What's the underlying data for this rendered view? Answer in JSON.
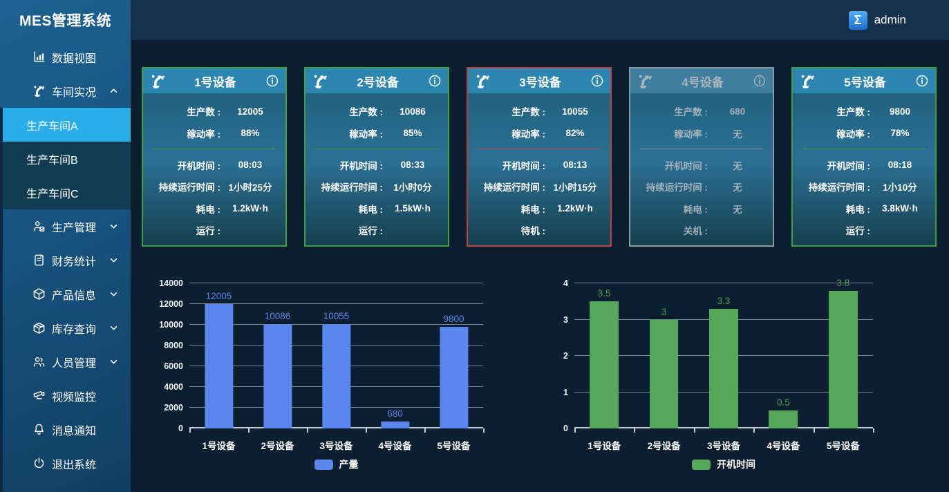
{
  "app": {
    "title": "MES管理系统",
    "user": "admin",
    "user_icon": "sigma-avatar",
    "colors": {
      "sidebar": "#17537e",
      "sidebar_selected": "#29aee9",
      "submenu_bg": "#113c52",
      "topbar": "#15304a",
      "content_bg": "#0c1f30",
      "card_header": "#2d86b2"
    }
  },
  "sidebar": {
    "items": [
      {
        "key": "data-view",
        "label": "数据视图",
        "icon": "bar-chart-icon",
        "expandable": false
      },
      {
        "key": "workshop-live",
        "label": "车间实况",
        "icon": "robot-arm-icon",
        "expandable": true,
        "state": "expanded",
        "children": [
          {
            "key": "workshop-a",
            "label": "生产车间A",
            "selected": true
          },
          {
            "key": "workshop-b",
            "label": "生产车间B",
            "selected": false
          },
          {
            "key": "workshop-c",
            "label": "生产车间C",
            "selected": false
          }
        ]
      },
      {
        "key": "production-mgmt",
        "label": "生产管理",
        "icon": "person-report-icon",
        "expandable": true,
        "state": "collapsed"
      },
      {
        "key": "finance-stats",
        "label": "财务统计",
        "icon": "ledger-icon",
        "expandable": true,
        "state": "collapsed"
      },
      {
        "key": "product-info",
        "label": "产品信息",
        "icon": "cube-icon",
        "expandable": true,
        "state": "collapsed"
      },
      {
        "key": "inventory-query",
        "label": "库存查询",
        "icon": "package-icon",
        "expandable": true,
        "state": "collapsed"
      },
      {
        "key": "personnel-mgmt",
        "label": "人员管理",
        "icon": "people-icon",
        "expandable": true,
        "state": "collapsed"
      },
      {
        "key": "video-monitor",
        "label": "视频监控",
        "icon": "camera-icon",
        "expandable": false
      },
      {
        "key": "notifications",
        "label": "消息通知",
        "icon": "bell-icon",
        "expandable": false
      },
      {
        "key": "logout",
        "label": "退出系统",
        "icon": "power-icon",
        "expandable": false
      }
    ]
  },
  "cards": {
    "field_labels": {
      "production": "生产数 :",
      "utilization": "稼动率 :",
      "start_time": "开机时间 :",
      "run_duration": "持续运行时间 :",
      "power": "耗电 :"
    },
    "items": [
      {
        "id": 1,
        "title": "1号设备",
        "production": "12005",
        "utilization": "88%",
        "start_time": "08:03",
        "run_duration": "1小时25分",
        "power": "1.2kW·h",
        "status_label": "运行 :",
        "status": "running"
      },
      {
        "id": 2,
        "title": "2号设备",
        "production": "10086",
        "utilization": "85%",
        "start_time": "08:33",
        "run_duration": "1小时0分",
        "power": "1.5kW·h",
        "status_label": "运行 :",
        "status": "running"
      },
      {
        "id": 3,
        "title": "3号设备",
        "production": "10055",
        "utilization": "82%",
        "start_time": "08:13",
        "run_duration": "1小时15分",
        "power": "1.2kW·h",
        "status_label": "待机 :",
        "status": "standby"
      },
      {
        "id": 4,
        "title": "4号设备",
        "production": "680",
        "utilization": "无",
        "start_time": "无",
        "run_duration": "无",
        "power": "无",
        "status_label": "关机 :",
        "status": "off"
      },
      {
        "id": 5,
        "title": "5号设备",
        "production": "9800",
        "utilization": "78%",
        "start_time": "08:18",
        "run_duration": "1小10分",
        "power": "3.8kW·h",
        "status_label": "运行 :",
        "status": "running"
      }
    ],
    "status_colors": {
      "running": "#3fa240",
      "standby": "#bf423d",
      "off": "#8d9d9d"
    },
    "dot_colors": {
      "running": "#6dbf45",
      "standby": "#d5423c",
      "off": "#8e9899"
    }
  },
  "chart_data": [
    {
      "type": "bar",
      "key": "production-chart",
      "title": "",
      "categories": [
        "1号设备",
        "2号设备",
        "3号设备",
        "4号设备",
        "5号设备"
      ],
      "values": [
        12005,
        10086,
        10055,
        680,
        9800
      ],
      "legend": "产量",
      "legend_position": "bottom",
      "color": "#5b86ee",
      "label_color": "#5b86ee",
      "ylim": [
        0,
        14000
      ],
      "yticks": [
        0,
        2000,
        4000,
        6000,
        8000,
        10000,
        12000,
        14000
      ],
      "grid": true
    },
    {
      "type": "bar",
      "key": "startup-time-chart",
      "title": "",
      "categories": [
        "1号设备",
        "2号设备",
        "3号设备",
        "4号设备",
        "5号设备"
      ],
      "values": [
        3.5,
        3,
        3.3,
        0.5,
        3.8
      ],
      "legend": "开机时间",
      "legend_position": "bottom",
      "color": "#55a85a",
      "label_color": "#4d9e4d",
      "ylim": [
        0,
        4
      ],
      "yticks": [
        0,
        1,
        2,
        3,
        4
      ],
      "grid": true
    }
  ]
}
